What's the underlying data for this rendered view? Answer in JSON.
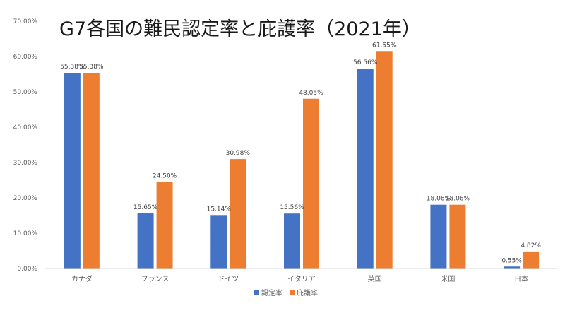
{
  "chart_data": {
    "type": "bar",
    "title": "G7各国の難民認定率と庇護率（2021年）",
    "xlabel": "",
    "ylabel": "",
    "ylim": [
      0,
      70
    ],
    "yticks": [
      0,
      10,
      20,
      30,
      40,
      50,
      60,
      70
    ],
    "ytick_labels": [
      "0.00%",
      "10.00%",
      "20.00%",
      "30.00%",
      "40.00%",
      "50.00%",
      "60.00%",
      "70.00%"
    ],
    "categories": [
      "カナダ",
      "フランス",
      "ドイツ",
      "イタリア",
      "英国",
      "米国",
      "日本"
    ],
    "series": [
      {
        "name": "認定率",
        "color": "#4472C4",
        "values": [
          55.38,
          15.65,
          15.14,
          15.56,
          56.56,
          18.06,
          0.55
        ],
        "labels": [
          "55.38%",
          "15.65%",
          "15.14%",
          "15.56%",
          "56.56%",
          "18.06%",
          "0.55%"
        ]
      },
      {
        "name": "庇護率",
        "color": "#ED7D31",
        "values": [
          55.38,
          24.5,
          30.98,
          48.05,
          61.55,
          18.06,
          4.82
        ],
        "labels": [
          "55.38%",
          "24.50%",
          "30.98%",
          "48.05%",
          "61.55%",
          "18.06%",
          "4.82%"
        ]
      }
    ],
    "legend_position": "bottom",
    "grid": false
  }
}
